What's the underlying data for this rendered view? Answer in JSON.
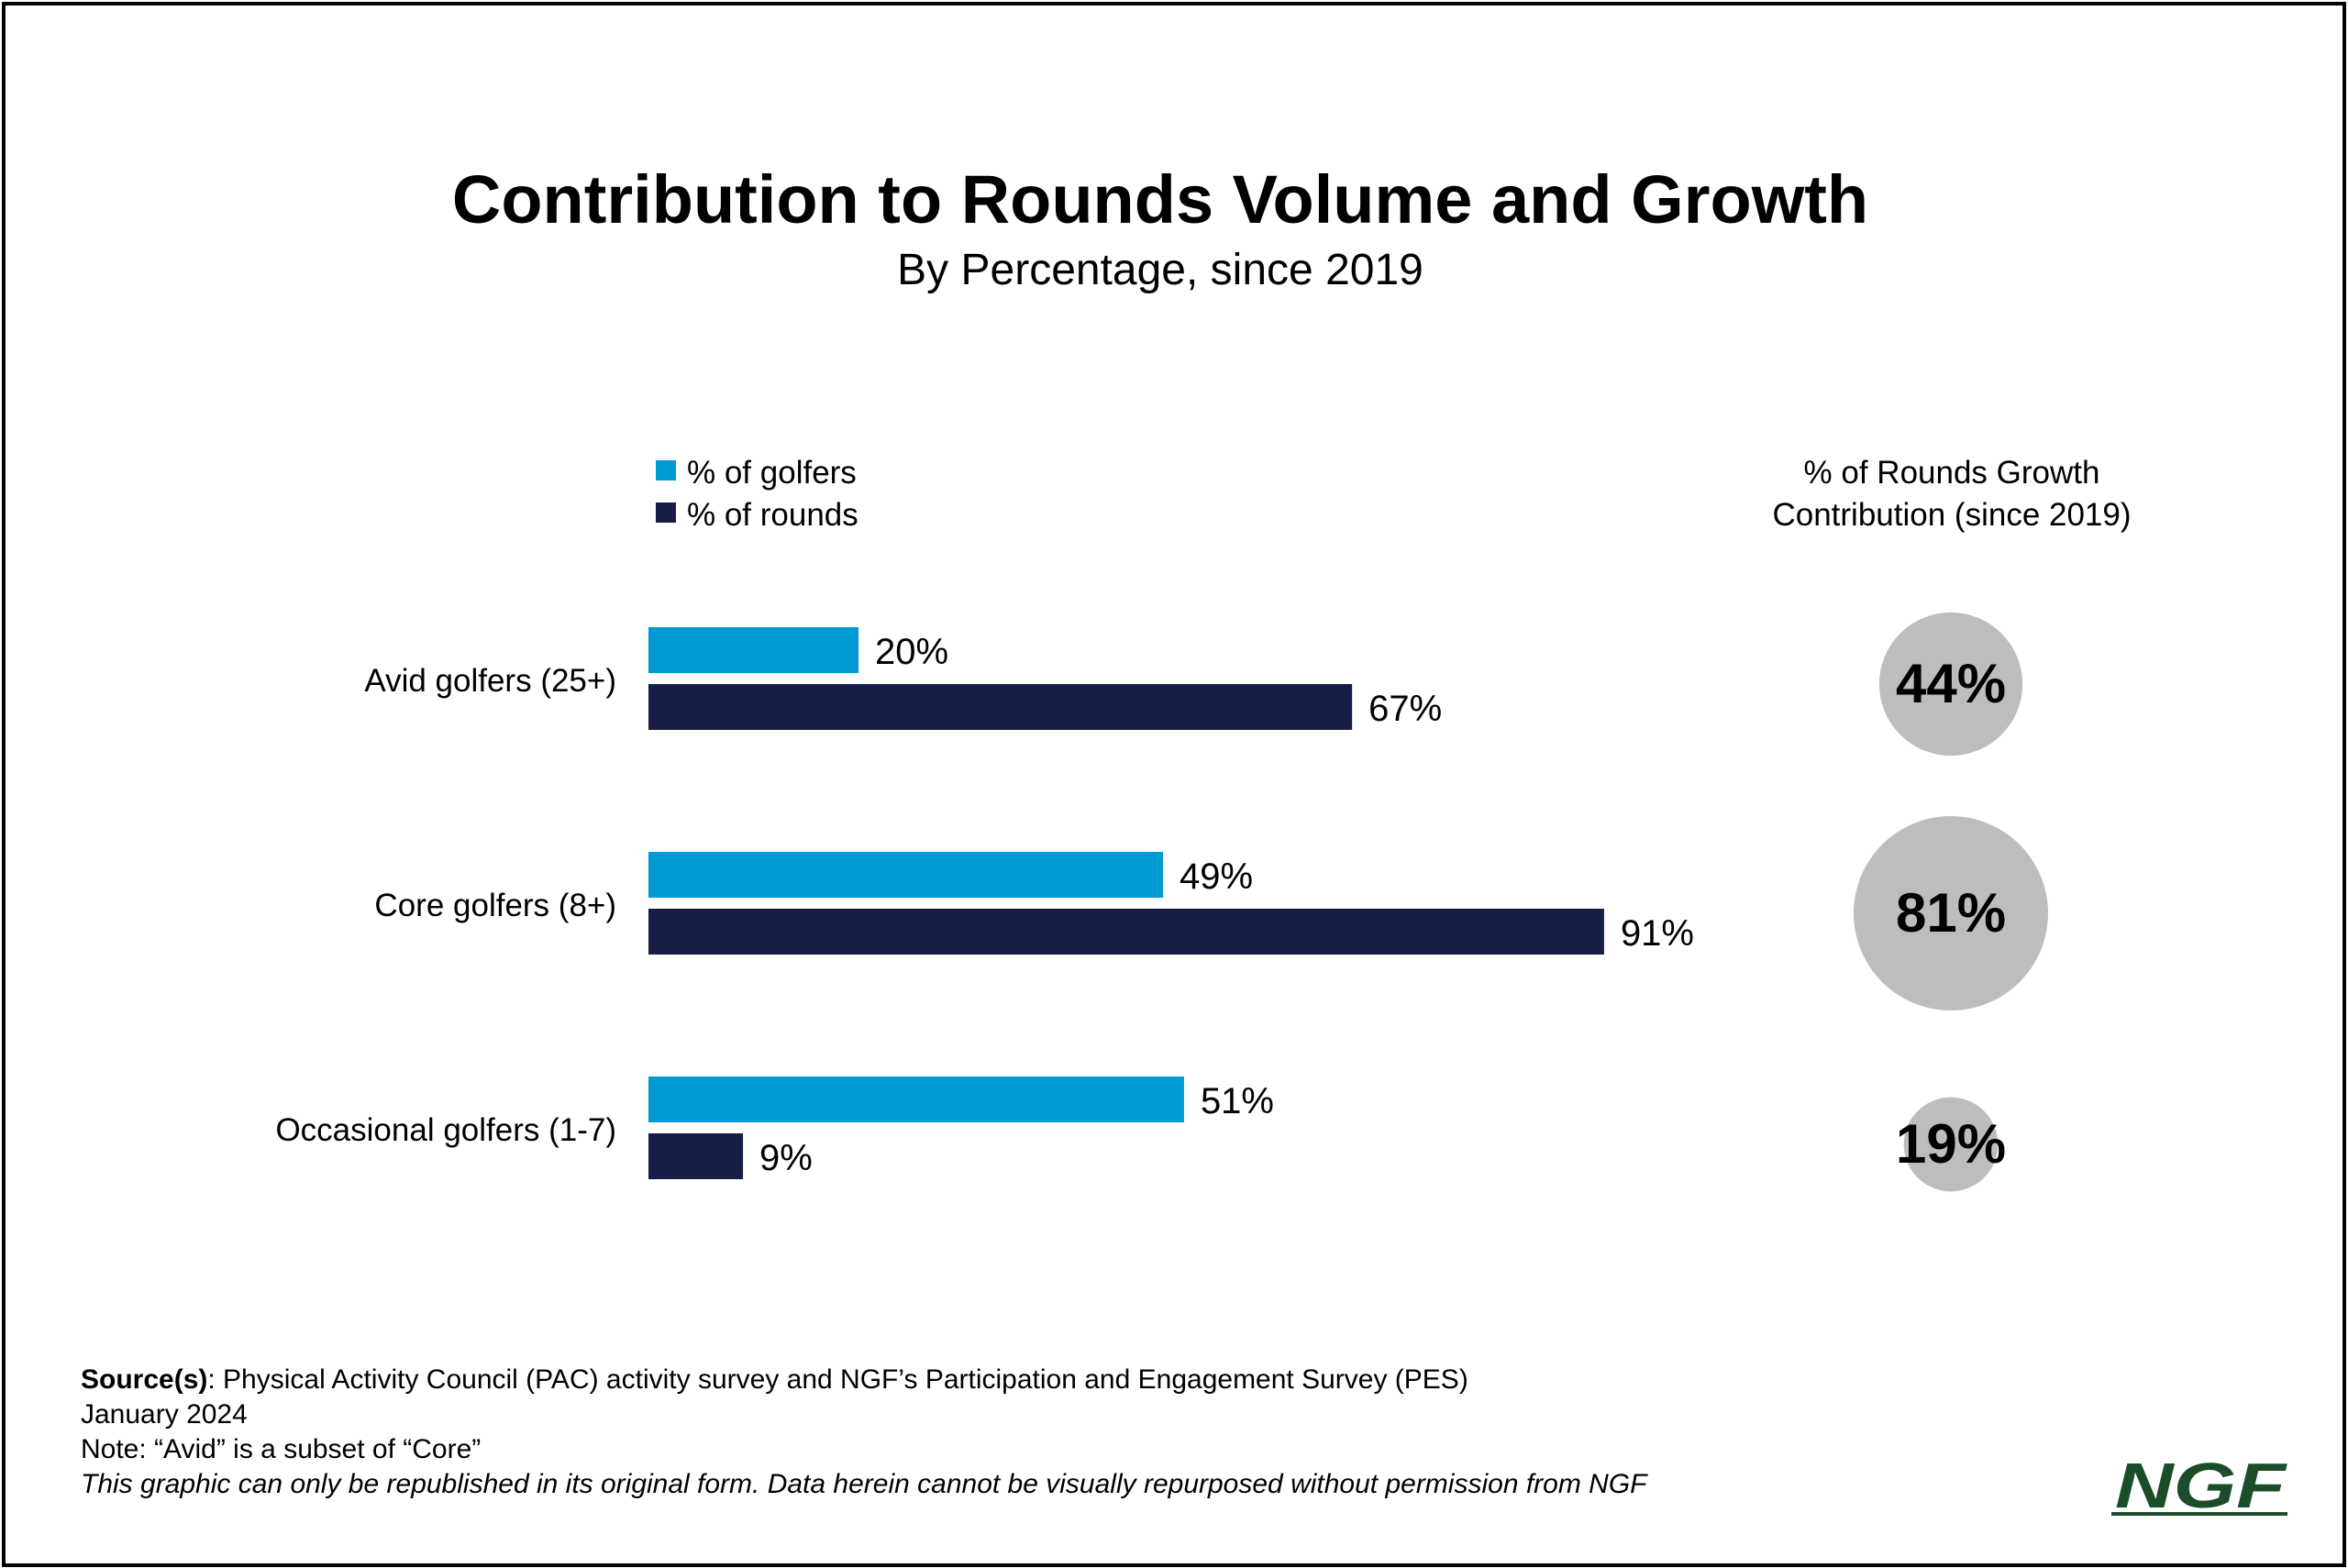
{
  "chart_data": {
    "type": "bar",
    "orientation": "horizontal",
    "title": "Contribution to Rounds Volume and Growth",
    "subtitle": "By Percentage, since 2019",
    "categories": [
      "Avid golfers (25+)",
      "Core golfers (8+)",
      "Occasional golfers (1-7)"
    ],
    "series": [
      {
        "name": "% of golfers",
        "values": [
          20,
          49,
          51
        ],
        "labels": [
          "20%",
          "49%",
          "51%"
        ],
        "color": "#009BD4"
      },
      {
        "name": "% of rounds",
        "values": [
          67,
          91,
          9
        ],
        "labels": [
          "67%",
          "91%",
          "9%"
        ],
        "color": "#161E48"
      }
    ],
    "xlim": [
      0,
      100
    ],
    "grid": false,
    "legend_position": "top-left",
    "growth": {
      "header": [
        "% of Rounds Growth",
        "Contribution (since 2019)"
      ],
      "values": [
        44,
        81,
        19
      ],
      "labels": [
        "44%",
        "81%",
        "19%"
      ],
      "color": "#BDBDBD"
    }
  },
  "footer": {
    "source_label": "Source(s)",
    "source_text": ": Physical Activity Council (PAC) activity survey and NGF’s Participation and Engagement Survey (PES)",
    "date": "January 2024",
    "note": "Note: “Avid” is a subset of “Core”",
    "disclaimer": "This graphic can only be republished in its original form. Data herein cannot be visually repurposed without permission from NGF"
  },
  "logo": {
    "text": "NGF",
    "color": "#1B4D2B"
  }
}
